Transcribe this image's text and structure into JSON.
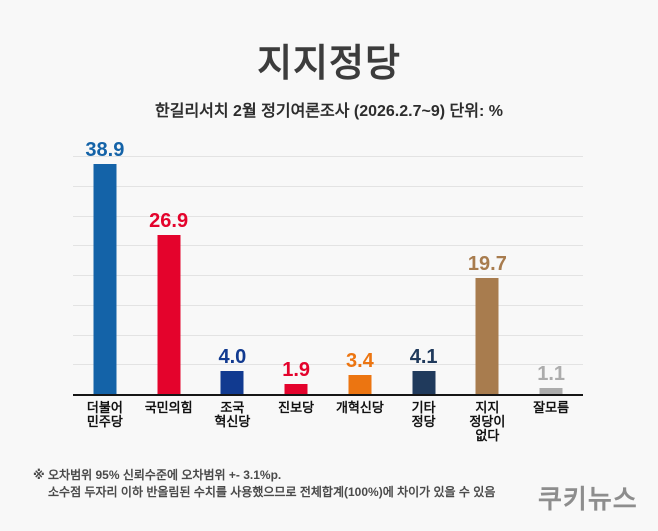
{
  "header": {
    "title": "지지정당",
    "subtitle": "한길리서치 2월 정기여론조사 (2026.2.7~9) 단위: %"
  },
  "chart_data": {
    "type": "bar",
    "title": "지지정당",
    "subtitle": "한길리서치 2월 정기여론조사 (2026.2.7~9) 단위: %",
    "unit": "%",
    "categories": [
      "더불어\n민주당",
      "국민의힘",
      "조국\n혁신당",
      "진보당",
      "개혁신당",
      "기타\n정당",
      "지지\n정당이\n없다",
      "잘모름"
    ],
    "values": [
      38.9,
      26.9,
      4.0,
      1.9,
      3.4,
      4.1,
      19.7,
      1.1
    ],
    "value_labels": [
      "38.9",
      "26.9",
      "4.0",
      "1.9",
      "3.4",
      "4.1",
      "19.7",
      "1.1"
    ],
    "bar_colors": [
      "#1463A8",
      "#E4032C",
      "#113A90",
      "#E4032C",
      "#EC7511",
      "#203A5C",
      "#A87C4E",
      "#ACACAC"
    ],
    "ylim": [
      0,
      40
    ],
    "grid_step": 5,
    "grid": true,
    "legend": false
  },
  "footer": {
    "note_line1": "※ 오차범위 95% 신뢰수준에 오차범위 +- 3.1%p.",
    "note_line2": "소수점 두자리 이하 반올림된 수치를 사용했으므로 전체합계(100%)에 차이가 있을 수 있음",
    "logo": "쿠키뉴스"
  },
  "colors": {
    "background": "#F8F8F8",
    "gridline": "#E3E3E3",
    "axis": "#161616",
    "title": "#3C3C3C",
    "subtitle": "#2D2D2D",
    "note": "#4A4A4A",
    "logo": "#8D8D8D"
  }
}
